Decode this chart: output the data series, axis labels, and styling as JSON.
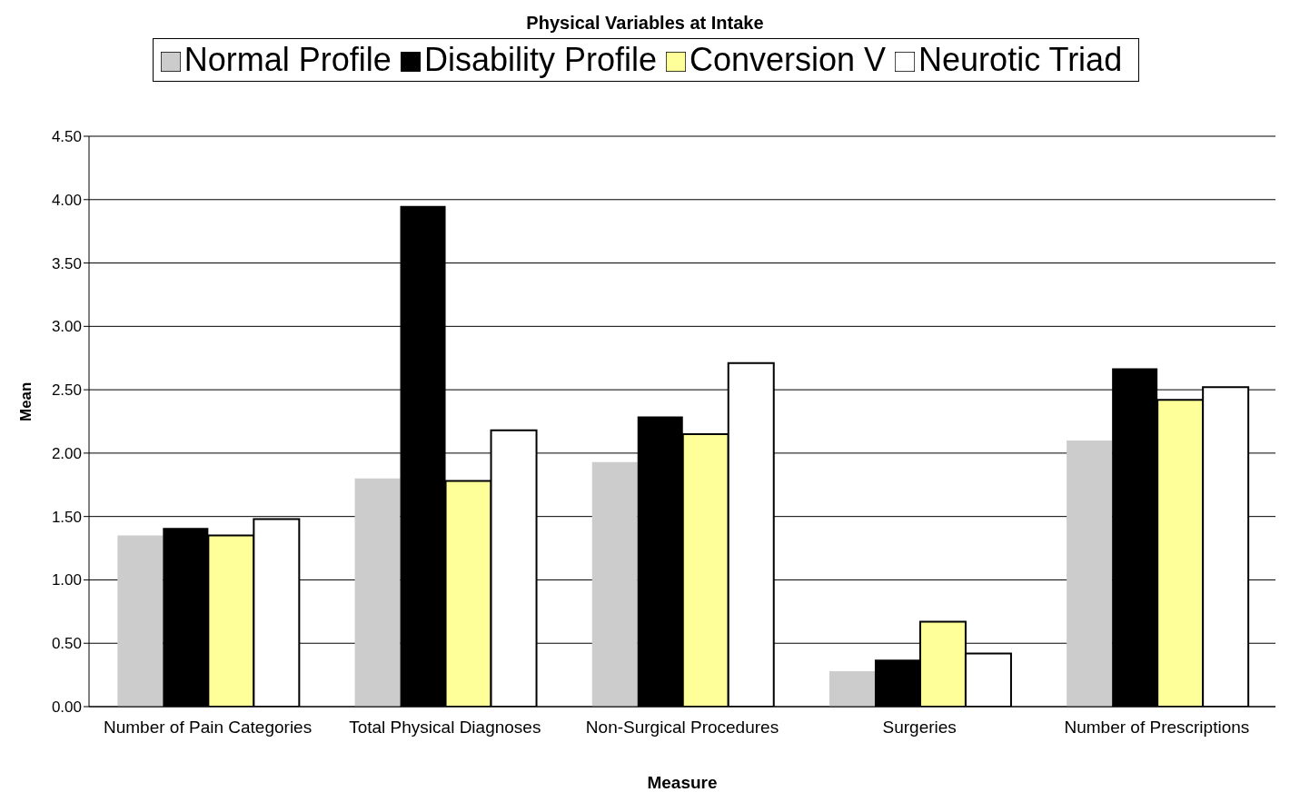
{
  "chart_data": {
    "type": "bar",
    "title": "Physical Variables at Intake",
    "xlabel": "Measure",
    "ylabel": "Mean",
    "categories": [
      "Number of Pain Categories",
      "Total Physical Diagnoses",
      "Non-Surgical Procedures",
      "Surgeries",
      "Number of Prescriptions"
    ],
    "series": [
      {
        "name": "Normal Profile",
        "color": "#cccccc",
        "values": [
          1.35,
          1.8,
          1.93,
          0.28,
          2.1
        ]
      },
      {
        "name": "Disability Profile",
        "color": "#000000",
        "values": [
          1.41,
          3.95,
          2.29,
          0.37,
          2.67
        ]
      },
      {
        "name": "Conversion V",
        "color": "#ffff99",
        "values": [
          1.35,
          1.78,
          2.15,
          0.67,
          2.42
        ]
      },
      {
        "name": "Neurotic Triad",
        "color": "#ffffff",
        "values": [
          1.48,
          2.18,
          2.71,
          0.42,
          2.52
        ]
      }
    ],
    "ylim": [
      0,
      4.5
    ],
    "yticks": [
      {
        "value": 0,
        "label": "0.00"
      },
      {
        "value": 0.5,
        "label": "0.50"
      },
      {
        "value": 1,
        "label": "1.00"
      },
      {
        "value": 1.5,
        "label": "1.50"
      },
      {
        "value": 2,
        "label": "2.00"
      },
      {
        "value": 2.5,
        "label": "2.50"
      },
      {
        "value": 3,
        "label": "3.00"
      },
      {
        "value": 3.5,
        "label": "3.50"
      },
      {
        "value": 4,
        "label": "4.00"
      },
      {
        "value": 4.5,
        "label": "4.50"
      }
    ],
    "grid": "y",
    "legend": "top"
  }
}
